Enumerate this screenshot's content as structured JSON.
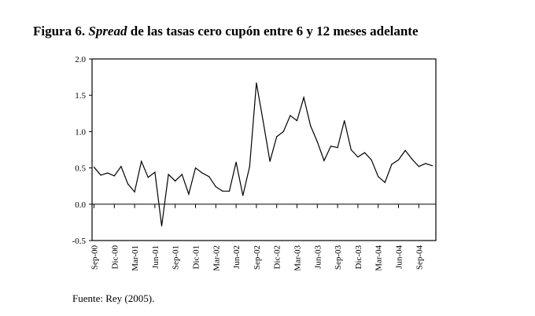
{
  "title": {
    "prefix": "Figura 6. ",
    "italic": "Spread",
    "suffix": " de las tasas cero cupón entre 6 y 12 meses adelante"
  },
  "source": "Fuente: Rey (2005).",
  "chart_data": {
    "type": "line",
    "title": "Figura 6. Spread de las tasas cero cupón entre 6 y 12 meses adelante",
    "xlabel": "",
    "ylabel": "",
    "ylim": [
      -0.5,
      2.0
    ],
    "yticks": [
      "2.0",
      "1.5",
      "1.0",
      "0.5",
      "0.0",
      "-0.5"
    ],
    "ytick_values": [
      2.0,
      1.5,
      1.0,
      0.5,
      0.0,
      -0.5
    ],
    "xtick_labels": [
      "Sep-00",
      "Dic-00",
      "Mar-01",
      "Jun-01",
      "Sep-01",
      "Dic-01",
      "Mar-02",
      "Jun-02",
      "Sep-02",
      "Dic-02",
      "Mar-03",
      "Jun-03",
      "Sep-03",
      "Dic-03",
      "Mar-04",
      "Jun-04",
      "Sep-04"
    ],
    "x_start": "Sep-00",
    "frequency": "monthly",
    "grid": false,
    "series": [
      {
        "name": "Spread",
        "values": [
          0.51,
          0.4,
          0.43,
          0.39,
          0.52,
          0.28,
          0.17,
          0.59,
          0.37,
          0.44,
          -0.3,
          0.41,
          0.32,
          0.41,
          0.14,
          0.5,
          0.43,
          0.38,
          0.24,
          0.18,
          0.18,
          0.58,
          0.12,
          0.52,
          1.67,
          1.14,
          0.59,
          0.93,
          1.0,
          1.22,
          1.15,
          1.47,
          1.08,
          0.86,
          0.6,
          0.8,
          0.78,
          1.15,
          0.75,
          0.65,
          0.71,
          0.61,
          0.38,
          0.3,
          0.55,
          0.61,
          0.74,
          0.62,
          0.52,
          0.56,
          0.53
        ]
      }
    ]
  }
}
